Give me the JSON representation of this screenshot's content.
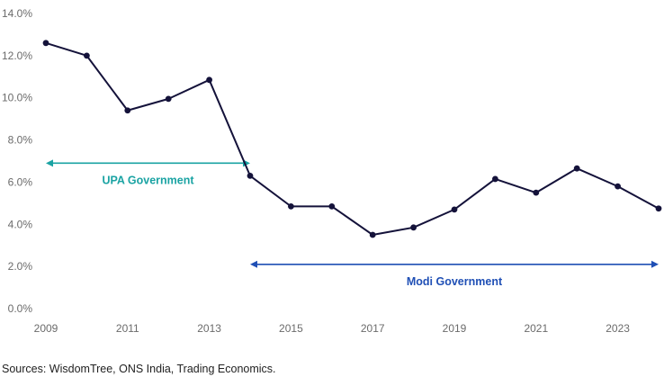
{
  "chart_data": {
    "type": "line",
    "x": [
      2009,
      2010,
      2011,
      2012,
      2013,
      2014,
      2015,
      2016,
      2017,
      2018,
      2019,
      2020,
      2021,
      2022,
      2023,
      2024
    ],
    "series": [
      {
        "values": [
          12.6,
          12.0,
          9.4,
          9.95,
          10.85,
          6.3,
          4.85,
          4.85,
          3.5,
          3.85,
          4.7,
          6.15,
          5.5,
          6.65,
          5.8,
          4.75
        ]
      }
    ],
    "xticks": [
      "2009",
      "2011",
      "2013",
      "2015",
      "2017",
      "2019",
      "2021",
      "2023"
    ],
    "yticks": [
      "0.0%",
      "2.0%",
      "4.0%",
      "6.0%",
      "8.0%",
      "10.0%",
      "12.0%",
      "14.0%"
    ],
    "xlim": [
      2009,
      2024
    ],
    "ylim": [
      0,
      14
    ],
    "grid": false,
    "annotations": [
      {
        "label": "UPA Government",
        "x_start": 2009,
        "x_end": 2014,
        "y": 6.9,
        "color": "#1aa3a3"
      },
      {
        "label": "Modi Government",
        "x_start": 2014,
        "x_end": 2024,
        "y": 2.1,
        "color": "#1f4fb5"
      }
    ],
    "line_color": "#14123a"
  },
  "source_text": "Sources: WisdomTree, ONS India, Trading Economics."
}
